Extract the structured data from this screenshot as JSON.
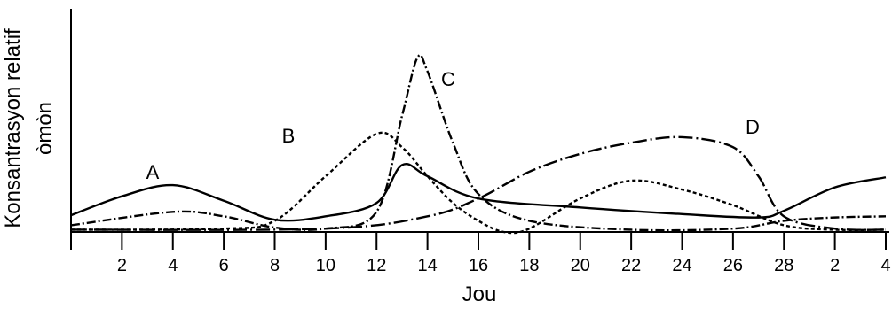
{
  "chart_data": {
    "type": "line",
    "y_label": [
      "Konsantrasyon relatif",
      "òmòn"
    ],
    "x_label": "Jou",
    "xlim": [
      0,
      32
    ],
    "ylim": [
      0,
      100
    ],
    "xticks": [
      2,
      4,
      6,
      8,
      10,
      12,
      14,
      16,
      18,
      20,
      22,
      24,
      26,
      28,
      {
        "value": 30,
        "label": "2"
      },
      {
        "value": 32,
        "label": "4"
      }
    ],
    "series": [
      {
        "name": "A",
        "color": "#000000",
        "dash": "none",
        "x": [
          0,
          2,
          4,
          6,
          8,
          10,
          12,
          13,
          14,
          16,
          20,
          24,
          27,
          28,
          30,
          32
        ],
        "values": [
          7.5,
          16,
          21,
          14,
          5.5,
          7,
          13,
          30,
          25,
          15,
          11,
          8,
          6.5,
          9.5,
          20,
          24.5
        ]
      },
      {
        "name": "B",
        "color": "#000000",
        "dash": "4,3",
        "x": [
          0,
          6,
          8,
          10,
          12,
          13,
          14,
          15,
          16,
          17,
          18,
          20,
          22,
          24,
          26,
          28,
          30,
          32
        ],
        "values": [
          1,
          1.5,
          5,
          25,
          44,
          38,
          25,
          13,
          5,
          0,
          1.5,
          15,
          23,
          19,
          12,
          3,
          1,
          1
        ]
      },
      {
        "name": "C",
        "color": "#000000",
        "dash": "10,3,2,3",
        "x": [
          0,
          4,
          6,
          8,
          10,
          12,
          13,
          13.6,
          14,
          15,
          16,
          18,
          22,
          26,
          28,
          30,
          32
        ],
        "values": [
          3,
          9,
          7,
          2,
          1.5,
          9,
          52,
          78,
          72,
          40,
          17,
          5,
          1,
          1.5,
          5,
          6.5,
          7
        ]
      },
      {
        "name": "D",
        "color": "#000000",
        "dash": "16,4,2,4",
        "x": [
          0,
          10,
          14,
          16,
          18,
          20,
          22,
          24,
          26,
          27,
          28,
          30,
          32
        ],
        "values": [
          1,
          1.5,
          7,
          15,
          27,
          35,
          40,
          42.5,
          38,
          25,
          7,
          1.5,
          1
        ]
      }
    ]
  }
}
